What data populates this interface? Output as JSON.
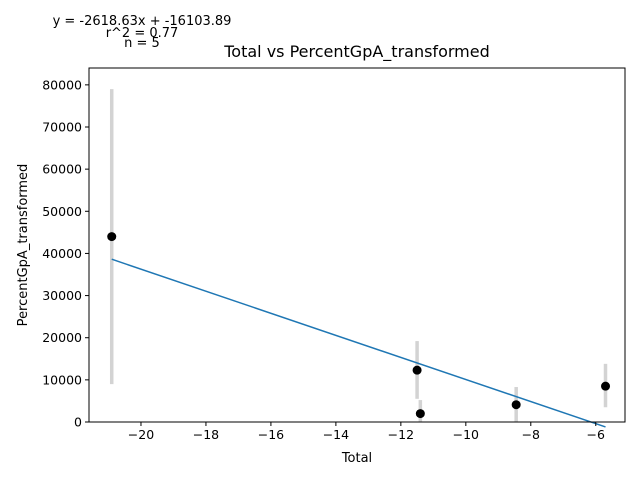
{
  "chart_data": {
    "type": "scatter",
    "title": "Total vs PercentGpA_transformed",
    "xlabel": "Total",
    "ylabel": "PercentGpA_transformed",
    "xlim": [
      -21.6,
      -5.1
    ],
    "ylim": [
      0,
      84000
    ],
    "x_ticks": [
      -20,
      -18,
      -16,
      -14,
      -12,
      -10,
      -8,
      -6
    ],
    "y_ticks": [
      0,
      10000,
      20000,
      30000,
      40000,
      50000,
      60000,
      70000,
      80000
    ],
    "grid": false,
    "legend": "none",
    "points": [
      {
        "x": -20.9,
        "y": 44000,
        "err_low": 9000,
        "err_high": 79000
      },
      {
        "x": -11.5,
        "y": 12300,
        "err_low": 5500,
        "err_high": 19200
      },
      {
        "x": -11.4,
        "y": 2000,
        "err_low": 0,
        "err_high": 5200
      },
      {
        "x": -8.45,
        "y": 4100,
        "err_low": 0,
        "err_high": 8300
      },
      {
        "x": -5.7,
        "y": 8500,
        "err_low": 3500,
        "err_high": 13800
      }
    ],
    "fit_line": {
      "slope": -2618.63,
      "intercept": -16103.89,
      "x_range": [
        -20.9,
        -5.7
      ]
    },
    "annotations": [
      "y = -2618.63x + -16103.89",
      "r^2 = 0.77",
      "n = 5"
    ],
    "colors": {
      "point": "#000000",
      "errorbar": "#d3d3d3",
      "fit_line": "#1f77b4"
    }
  }
}
